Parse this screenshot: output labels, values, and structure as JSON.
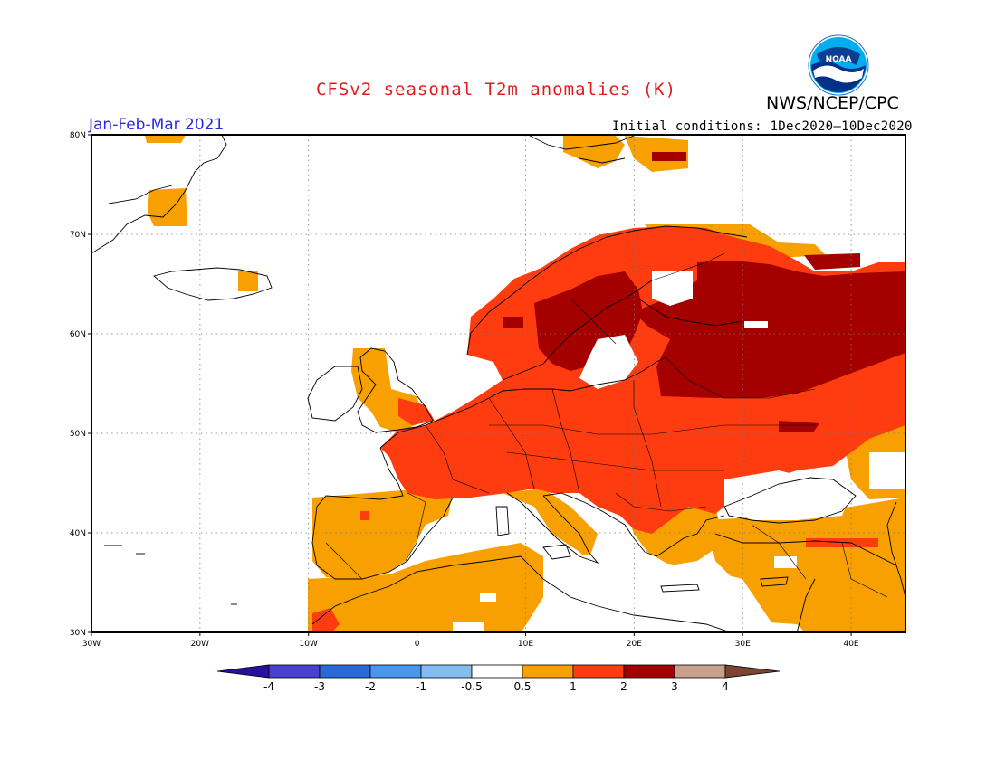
{
  "header": {
    "title": "CFSv2 seasonal T2m anomalies (K)",
    "agency": "NWS/NCEP/CPC",
    "season": "Jan-Feb-Mar 2021",
    "initial_conditions": "Initial conditions: 1Dec2020–10Dec2020",
    "logo_text": "NOAA"
  },
  "map": {
    "lat_labels": [
      "80N",
      "70N",
      "60N",
      "50N",
      "40N",
      "30N"
    ],
    "lon_labels": [
      "30W",
      "20W",
      "10W",
      "0",
      "10E",
      "20E",
      "30E",
      "40E"
    ],
    "lat_range": [
      30,
      80
    ],
    "lon_range": [
      -30,
      45
    ],
    "gridlines": "dotted"
  },
  "colorbar": {
    "labels": [
      "-4",
      "-3",
      "-2",
      "-1",
      "-0.5",
      "0.5",
      "1",
      "2",
      "3",
      "4"
    ],
    "colors": [
      "#2a10a0",
      "#4a40d0",
      "#2a6ad8",
      "#4a96ee",
      "#82bdf2",
      "#ffffff",
      "#f7a000",
      "#ff3c0f",
      "#a50000",
      "#c8a08c",
      "#7a4630"
    ]
  },
  "anomaly_colors": {
    "weak_warm": "#f7a000",
    "warm": "#ff3c0f",
    "strong_warm": "#a50000",
    "land_outline": "#000000"
  }
}
